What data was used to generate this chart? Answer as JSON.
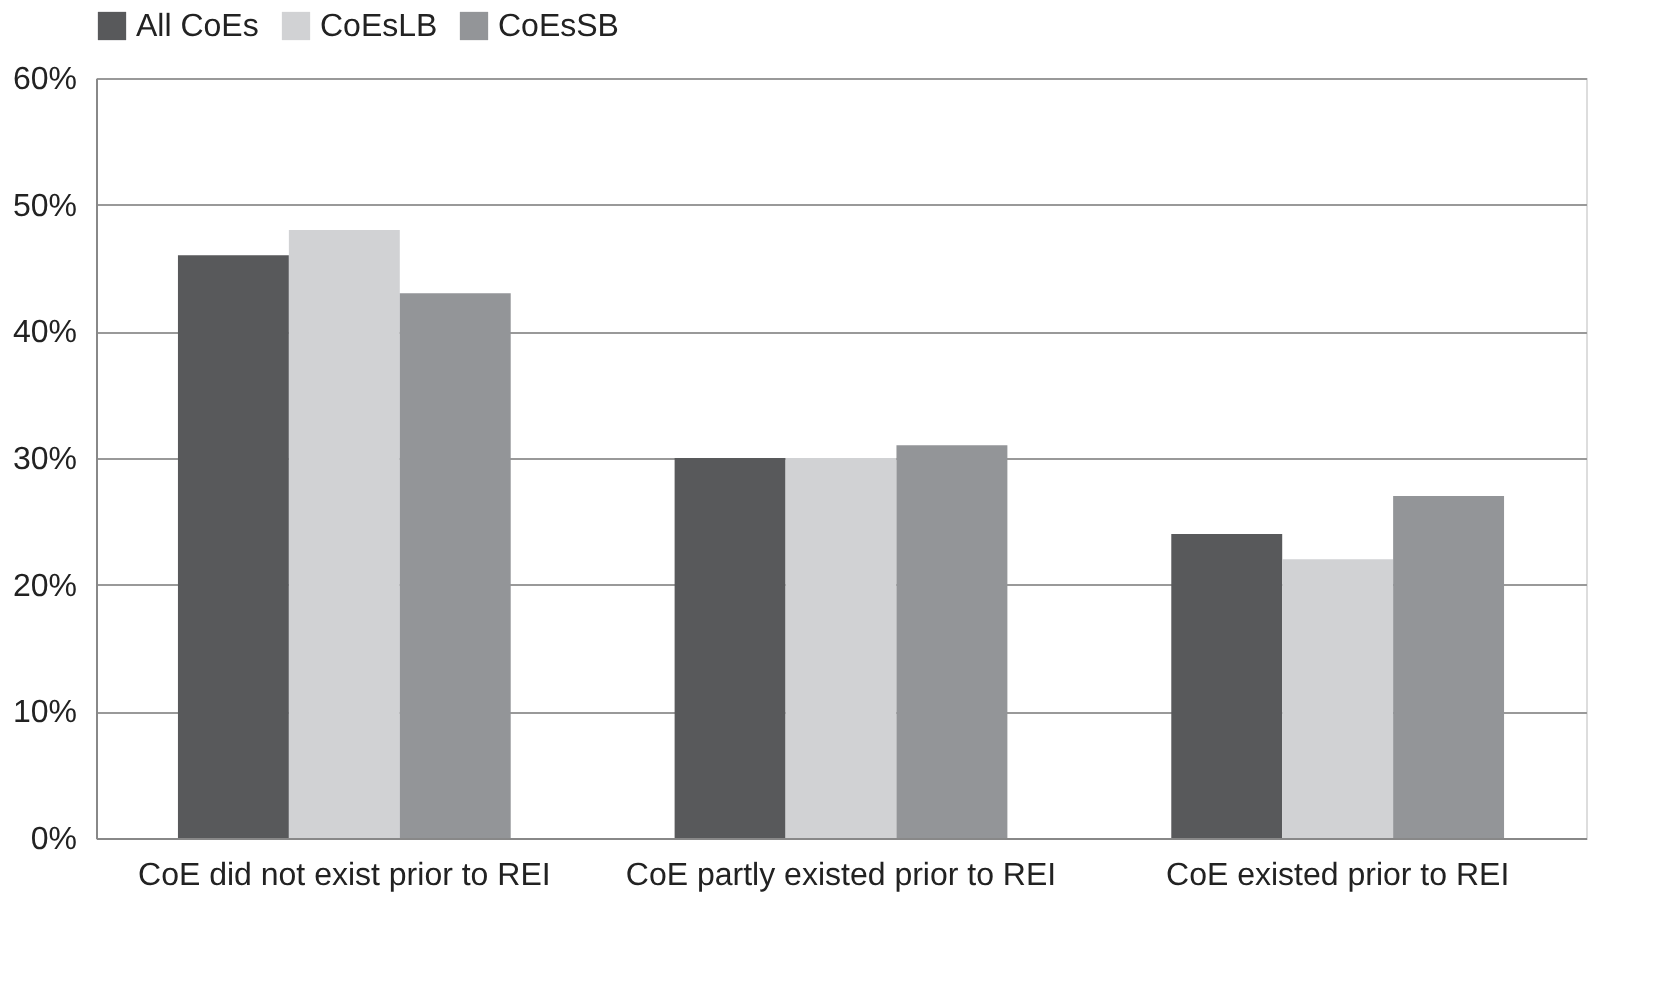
{
  "chart_data": {
    "type": "bar",
    "categories": [
      "CoE did not exist prior to REI",
      "CoE partly existed prior to REI",
      "CoE existed prior to REI"
    ],
    "series": [
      {
        "name": "All CoEs",
        "color": "#58595b",
        "values": [
          46,
          30,
          24
        ]
      },
      {
        "name": "CoEsLB",
        "color": "#d1d2d4",
        "values": [
          48,
          30,
          22
        ]
      },
      {
        "name": "CoEsSB",
        "color": "#939598",
        "values": [
          43,
          31,
          27
        ]
      }
    ],
    "ylim": [
      0,
      60
    ],
    "yticks": [
      {
        "value": 0,
        "label": "0%"
      },
      {
        "value": 10,
        "label": "10%"
      },
      {
        "value": 20,
        "label": "20%"
      },
      {
        "value": 30,
        "label": "30%"
      },
      {
        "value": 40,
        "label": "40%"
      },
      {
        "value": 50,
        "label": "50%"
      },
      {
        "value": 60,
        "label": "60%"
      }
    ],
    "grid": "y",
    "legend": "top"
  }
}
